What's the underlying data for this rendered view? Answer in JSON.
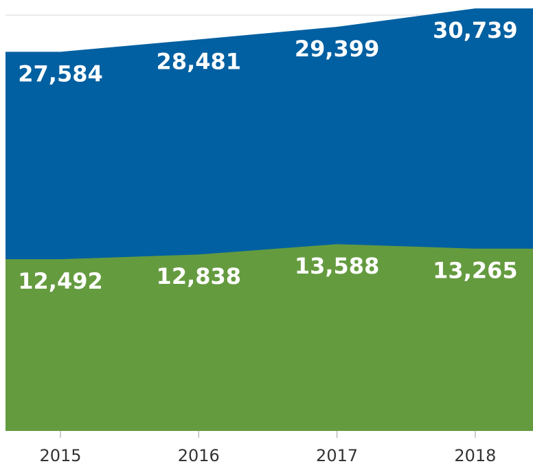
{
  "chart_data": {
    "type": "area",
    "categories": [
      "2015",
      "2016",
      "2017",
      "2018"
    ],
    "series": [
      {
        "color": "#0160a1",
        "values": [
          27584,
          28481,
          29399,
          30739
        ],
        "value_labels": [
          "27,584",
          "28,481",
          "29,399",
          "30,739"
        ]
      },
      {
        "color": "#659b3f",
        "values": [
          12492,
          12838,
          13588,
          13265
        ],
        "value_labels": [
          "12,492",
          "12,838",
          "13,588",
          "13,265"
        ]
      }
    ],
    "ylim": [
      0,
      31350
    ]
  }
}
